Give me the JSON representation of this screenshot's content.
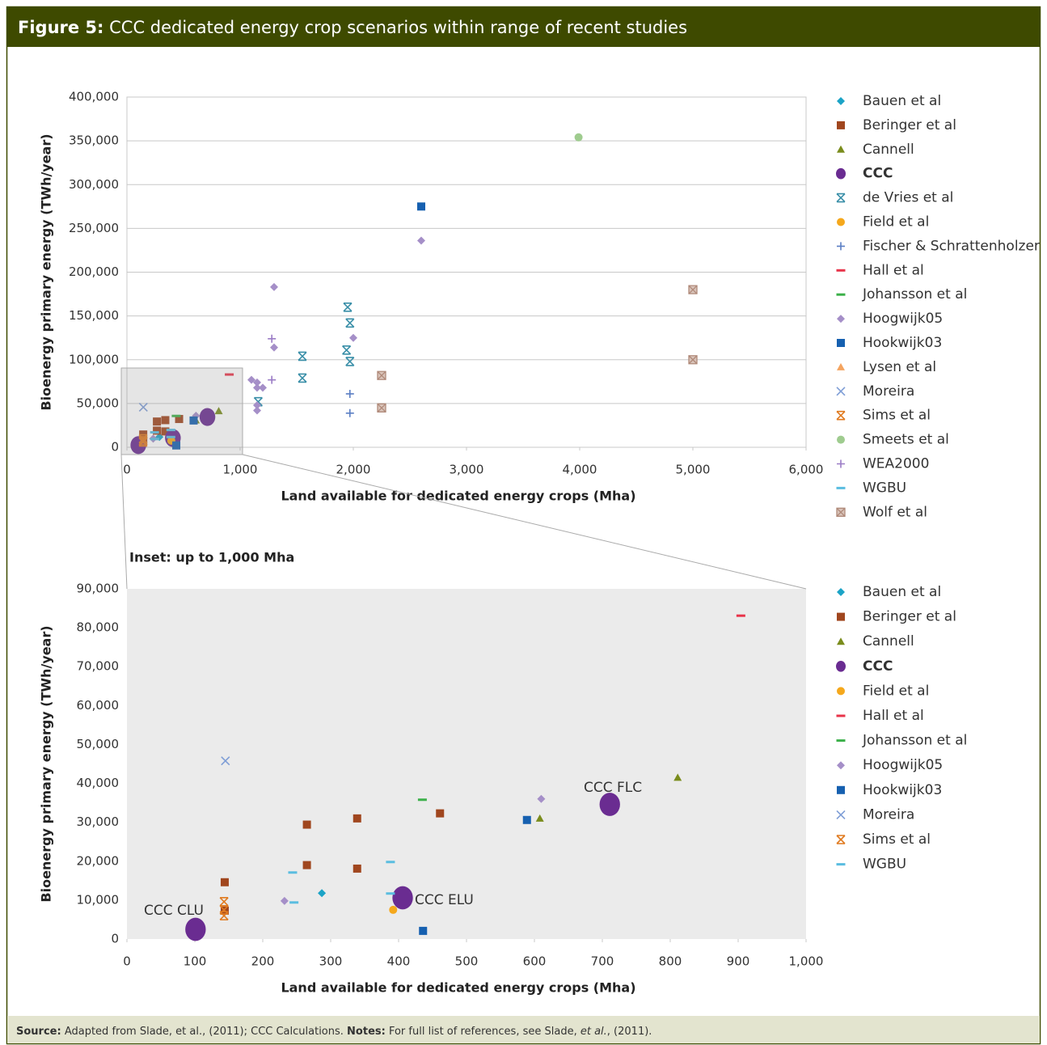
{
  "header": {
    "label": "Figure 5:",
    "title": "CCC dedicated energy crop scenarios within range of recent studies"
  },
  "chart_data": [
    {
      "type": "scatter",
      "xlabel": "Land available for dedicated energy crops (Mha)",
      "ylabel": "Bioenergy primary energy (TWh/year)",
      "xlim": [
        0,
        6000
      ],
      "ylim": [
        0,
        400000
      ],
      "xticks": [
        0,
        {
          "value": 1000,
          "label": "1,000"
        },
        {
          "value": 2000,
          "label": "2,000"
        },
        {
          "value": 3000,
          "label": "3,000"
        },
        {
          "value": 4000,
          "label": "4,000"
        },
        {
          "value": 5000,
          "label": "5,000"
        },
        {
          "value": 6000,
          "label": "6,000"
        }
      ],
      "yticks": [
        0,
        {
          "value": 50000,
          "label": "50,000"
        },
        {
          "value": 100000,
          "label": "100,000"
        },
        {
          "value": 150000,
          "label": "150,000"
        },
        {
          "value": 200000,
          "label": "200,000"
        },
        {
          "value": 250000,
          "label": "250,000"
        },
        {
          "value": 300000,
          "label": "300,000"
        },
        {
          "value": 350000,
          "label": "350,000"
        },
        {
          "value": 400000,
          "label": "400,000"
        }
      ],
      "grid": true,
      "legend": "right",
      "series": [
        {
          "name": "Bauen et al",
          "color": "#1ba3c6",
          "marker": "diamond",
          "x": [
            287
          ],
          "values": [
            11800
          ]
        },
        {
          "name": "Beringer et al",
          "color": "#a0461e",
          "marker": "square",
          "x": [
            144,
            144,
            265,
            265,
            339,
            339,
            461
          ],
          "values": [
            14600,
            7300,
            29400,
            19000,
            31000,
            18100,
            32300
          ]
        },
        {
          "name": "Cannell",
          "color": "#7a8c1c",
          "marker": "triangle",
          "x": [
            811,
            608
          ],
          "values": [
            41500,
            31000
          ]
        },
        {
          "name": "CCC",
          "color": "#6a2c91",
          "marker": "large-circle",
          "bold": true,
          "x": [
            101,
            406,
            711
          ],
          "values": [
            2500,
            10600,
            34600
          ]
        },
        {
          "name": "de Vries et al",
          "color": "#3a8fa8",
          "marker": "asterisk",
          "x": [
            1950,
            1970,
            1940,
            1970,
            1550,
            1550,
            1160
          ],
          "values": [
            160000,
            142000,
            111000,
            98000,
            104000,
            79000,
            52000
          ]
        },
        {
          "name": "Field et al",
          "color": "#f5a81c",
          "marker": "circle",
          "x": [
            392
          ],
          "values": [
            7500
          ]
        },
        {
          "name": "Fischer & Schrattenholzer",
          "color": "#5b7fc4",
          "marker": "plus",
          "x": [
            1970,
            1970
          ],
          "values": [
            61000,
            39000
          ]
        },
        {
          "name": "Hall et al",
          "color": "#e8344a",
          "marker": "dash",
          "x": [
            904
          ],
          "values": [
            83100
          ]
        },
        {
          "name": "Johansson et al",
          "color": "#3cb04a",
          "marker": "dash",
          "x": [
            435
          ],
          "values": [
            35800
          ]
        },
        {
          "name": "Hoogwijk05",
          "color": "#a58fc8",
          "marker": "diamond",
          "x": [
            2600,
            1300,
            1300,
            2000,
            1100,
            1150,
            1150,
            1200,
            1150,
            1150,
            232,
            610
          ],
          "values": [
            236000,
            183000,
            114000,
            125000,
            77000,
            74000,
            68000,
            68000,
            48000,
            42000,
            9800,
            36000
          ]
        },
        {
          "name": "Hookwijk03",
          "color": "#1660b0",
          "marker": "square",
          "x": [
            2600,
            589,
            436
          ],
          "values": [
            275000,
            30600,
            2100
          ]
        },
        {
          "name": "Lysen et al",
          "color": "#f4a460",
          "marker": "triangle",
          "x": [],
          "values": []
        },
        {
          "name": "Moreira",
          "color": "#7f9ed6",
          "marker": "x",
          "x": [
            145
          ],
          "values": [
            45800
          ]
        },
        {
          "name": "Sims et al",
          "color": "#e07a1f",
          "marker": "asterisk",
          "x": [
            143,
            143,
            143
          ],
          "values": [
            9600,
            7500,
            6000
          ]
        },
        {
          "name": "Smeets et al",
          "color": "#9fcc8f",
          "marker": "circle",
          "x": [
            3990
          ],
          "values": [
            354000
          ]
        },
        {
          "name": "WEA2000",
          "color": "#9b7cc6",
          "marker": "plus",
          "x": [
            1280,
            1280
          ],
          "values": [
            124000,
            77000
          ]
        },
        {
          "name": "WGBU",
          "color": "#5bbde0",
          "marker": "dash",
          "x": [
            244,
            246,
            388,
            388
          ],
          "values": [
            17100,
            9400,
            19800,
            11700
          ]
        },
        {
          "name": "Wolf et al",
          "color": "#b08a7a",
          "marker": "boxed-x",
          "x": [
            5000,
            5000,
            2250,
            2250
          ],
          "values": [
            180000,
            100000,
            82000,
            45000
          ]
        }
      ]
    },
    {
      "type": "scatter",
      "title": "Inset: up to 1,000 Mha",
      "xlabel": "Land available for dedicated energy crops (Mha)",
      "ylabel": "Bioenergy primary energy (TWh/year)",
      "xlim": [
        0,
        1000
      ],
      "ylim": [
        0,
        90000
      ],
      "xticks": [
        0,
        100,
        200,
        300,
        400,
        500,
        600,
        700,
        800,
        900,
        {
          "value": 1000,
          "label": "1,000"
        }
      ],
      "yticks": [
        0,
        {
          "value": 10000,
          "label": "10,000"
        },
        {
          "value": 20000,
          "label": "20,000"
        },
        {
          "value": 30000,
          "label": "30,000"
        },
        {
          "value": 40000,
          "label": "40,000"
        },
        {
          "value": 50000,
          "label": "50,000"
        },
        {
          "value": 60000,
          "label": "60,000"
        },
        {
          "value": 70000,
          "label": "70,000"
        },
        {
          "value": 80000,
          "label": "80,000"
        },
        {
          "value": 90000,
          "label": "90,000"
        }
      ],
      "grid": false,
      "plot_background": "#ebebeb",
      "legend": "right",
      "annotations": [
        "CCC CLU",
        "CCC ELU",
        "CCC FLC"
      ],
      "series": [
        {
          "name": "Bauen et al",
          "color": "#1ba3c6",
          "marker": "diamond",
          "x": [
            287
          ],
          "values": [
            11800
          ]
        },
        {
          "name": "Beringer et al",
          "color": "#a0461e",
          "marker": "square",
          "x": [
            144,
            144,
            265,
            265,
            339,
            339,
            461
          ],
          "values": [
            14600,
            7300,
            29400,
            19000,
            31000,
            18100,
            32300
          ]
        },
        {
          "name": "Cannell",
          "color": "#7a8c1c",
          "marker": "triangle",
          "x": [
            811,
            608
          ],
          "values": [
            41500,
            31000
          ]
        },
        {
          "name": "CCC",
          "color": "#6a2c91",
          "marker": "large-circle",
          "bold": true,
          "x": [
            101,
            406,
            711
          ],
          "values": [
            2500,
            10600,
            34600
          ]
        },
        {
          "name": "Field et al",
          "color": "#f5a81c",
          "marker": "circle",
          "x": [
            392
          ],
          "values": [
            7500
          ]
        },
        {
          "name": "Hall et al",
          "color": "#e8344a",
          "marker": "dash",
          "x": [
            904
          ],
          "values": [
            83100
          ]
        },
        {
          "name": "Johansson et al",
          "color": "#3cb04a",
          "marker": "dash",
          "x": [
            435
          ],
          "values": [
            35800
          ]
        },
        {
          "name": "Hoogwijk05",
          "color": "#a58fc8",
          "marker": "diamond",
          "x": [
            232,
            610
          ],
          "values": [
            9800,
            36000
          ]
        },
        {
          "name": "Hookwijk03",
          "color": "#1660b0",
          "marker": "square",
          "x": [
            589,
            436
          ],
          "values": [
            30600,
            2100
          ]
        },
        {
          "name": "Moreira",
          "color": "#7f9ed6",
          "marker": "x",
          "x": [
            145
          ],
          "values": [
            45800
          ]
        },
        {
          "name": "Sims et al",
          "color": "#e07a1f",
          "marker": "asterisk",
          "x": [
            143,
            143,
            143
          ],
          "values": [
            9600,
            7500,
            6000
          ]
        },
        {
          "name": "WGBU",
          "color": "#5bbde0",
          "marker": "dash",
          "x": [
            244,
            246,
            388,
            388
          ],
          "values": [
            17100,
            9400,
            19800,
            11700
          ]
        }
      ]
    }
  ],
  "footer": {
    "source_label": "Source:",
    "source": "Adapted from Slade, et al., (2011); CCC Calculations.",
    "notes_label": "Notes:",
    "notes": "For full list of references, see Slade,",
    "notes_italic": "et al.",
    "notes_end": ", (2011)."
  }
}
